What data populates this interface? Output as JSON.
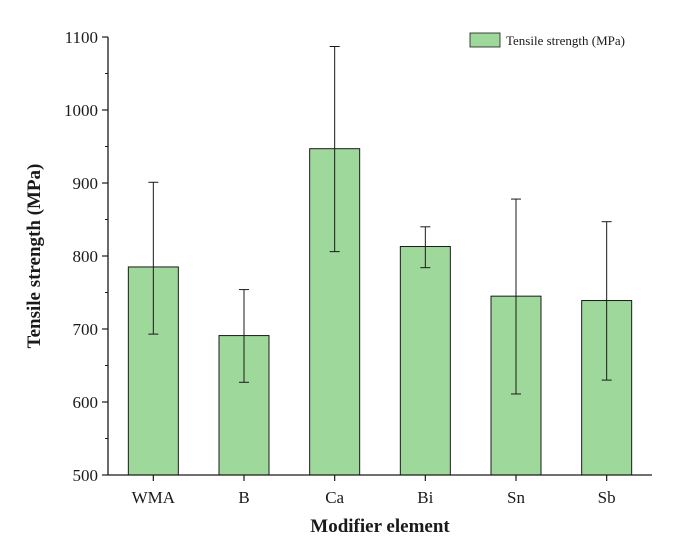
{
  "chart_data": {
    "type": "bar",
    "categories": [
      "WMA",
      "B",
      "Ca",
      "Bi",
      "Sn",
      "Sb"
    ],
    "series": [
      {
        "name": "Tensile strength (MPa)",
        "values": [
          785,
          691,
          947,
          813,
          745,
          739
        ],
        "error": [
          [
            693,
            901
          ],
          [
            627,
            754
          ],
          [
            806,
            1087
          ],
          [
            784,
            840
          ],
          [
            611,
            878
          ],
          [
            630,
            847
          ]
        ],
        "color": "#9ed89b"
      }
    ],
    "xlabel": "Modifier element",
    "ylabel": "Tensile strength (MPa)",
    "ylim": [
      500,
      1100
    ],
    "yticks": [
      500,
      600,
      700,
      800,
      900,
      1000,
      1100
    ],
    "grid": false,
    "legend_position": "top-right"
  }
}
